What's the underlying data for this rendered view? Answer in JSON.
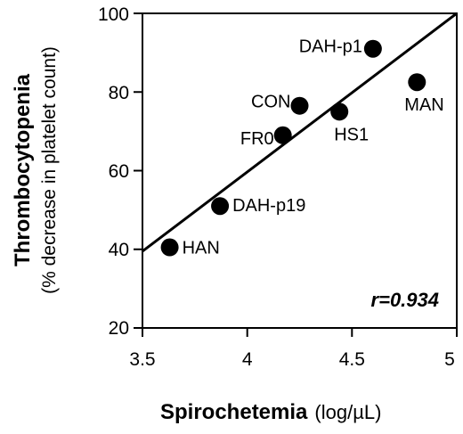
{
  "chart_data": {
    "type": "scatter",
    "xlabel": "Spirochetemia",
    "xlabel_units": "(log/µL)",
    "ylabel": "Thrombocytopenia",
    "ylabel_sub": "(% decrease in platelet count)",
    "xlim": [
      3.5,
      5
    ],
    "ylim": [
      20,
      100
    ],
    "x_ticks": [
      "3.5",
      "4",
      "4.5",
      "5"
    ],
    "y_ticks": [
      "20",
      "40",
      "60",
      "80",
      "100"
    ],
    "grid": false,
    "annotation": "r=0.934",
    "points": [
      {
        "label": "HAN",
        "x": 3.63,
        "y": 40.5
      },
      {
        "label": "DAH-p19",
        "x": 3.87,
        "y": 51
      },
      {
        "label": "FR0",
        "x": 4.17,
        "y": 69
      },
      {
        "label": "CON",
        "x": 4.25,
        "y": 76.5
      },
      {
        "label": "HS1",
        "x": 4.44,
        "y": 75
      },
      {
        "label": "DAH-p1",
        "x": 4.6,
        "y": 91
      },
      {
        "label": "MAN",
        "x": 4.81,
        "y": 82.5
      }
    ],
    "fit_line": {
      "x": [
        3.5,
        5
      ],
      "y": [
        39.5,
        100
      ]
    }
  }
}
